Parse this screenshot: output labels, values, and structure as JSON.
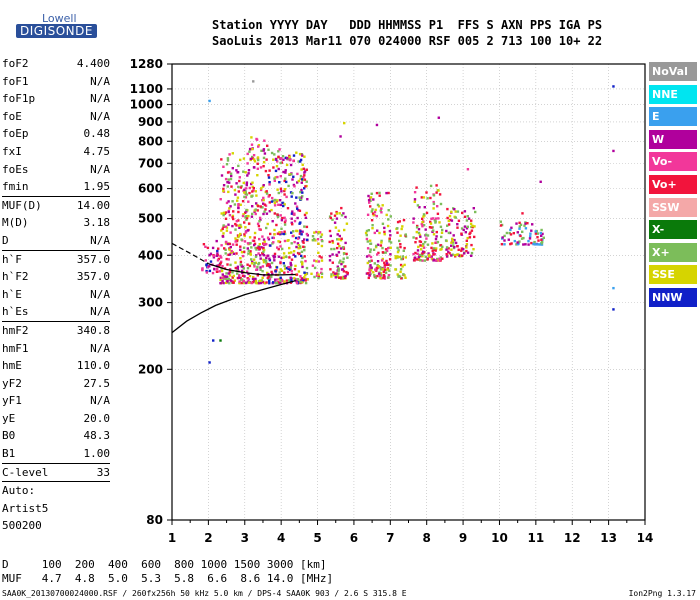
{
  "logo": {
    "line1": "Lowell",
    "line2": "DIGISONDE"
  },
  "header": {
    "labels": "Station YYYY DAY   DDD HHMMSS P1  FFS S AXN PPS IGA PS",
    "values": "SaoLuis 2013 Mar11 070 024000 RSF 005 2 713 100 10+ 22"
  },
  "params": [
    {
      "k": "foF2",
      "v": "4.400"
    },
    {
      "k": "foF1",
      "v": "N/A"
    },
    {
      "k": "foF1p",
      "v": "N/A"
    },
    {
      "k": "foE",
      "v": "N/A"
    },
    {
      "k": "foEp",
      "v": "0.48"
    },
    {
      "k": "fxI",
      "v": "4.75"
    },
    {
      "k": "foEs",
      "v": "N/A"
    },
    {
      "k": "fmin",
      "v": "1.95"
    },
    {
      "k": "MUF(D)",
      "v": "14.00",
      "sep": true
    },
    {
      "k": "M(D)",
      "v": "3.18"
    },
    {
      "k": "D",
      "v": "N/A"
    },
    {
      "k": "h`F",
      "v": "357.0",
      "sep": true
    },
    {
      "k": "h`F2",
      "v": "357.0"
    },
    {
      "k": "h`E",
      "v": "N/A"
    },
    {
      "k": "h`Es",
      "v": "N/A"
    },
    {
      "k": "hmF2",
      "v": "340.8",
      "sep": true
    },
    {
      "k": "hmF1",
      "v": "N/A"
    },
    {
      "k": "hmE",
      "v": "110.0"
    },
    {
      "k": "yF2",
      "v": "27.5"
    },
    {
      "k": "yF1",
      "v": "N/A"
    },
    {
      "k": "yE",
      "v": "20.0"
    },
    {
      "k": "B0",
      "v": "48.3"
    },
    {
      "k": "B1",
      "v": "1.00"
    },
    {
      "k": "C-level",
      "v": "33",
      "sep": true
    },
    {
      "k": "Auto:",
      "v": "",
      "sep": true
    },
    {
      "k": "Artist5",
      "v": ""
    },
    {
      "k": "500200",
      "v": ""
    }
  ],
  "legend": [
    {
      "label": "NoVal",
      "color": "#999999"
    },
    {
      "label": "NNE",
      "color": "#00e5f0"
    },
    {
      "label": "E",
      "color": "#3aa0ee"
    },
    {
      "label": "W",
      "color": "#b0009c"
    },
    {
      "label": "Vo-",
      "color": "#f2379a"
    },
    {
      "label": "Vo+",
      "color": "#f2143c"
    },
    {
      "label": "SSW",
      "color": "#f4a8a8"
    },
    {
      "label": "X-",
      "color": "#0a7a0a"
    },
    {
      "label": "X+",
      "color": "#7cbd5a"
    },
    {
      "label": "SSE",
      "color": "#d6d400"
    },
    {
      "label": "NNW",
      "color": "#1020c8"
    }
  ],
  "bottom": {
    "row1": "D     100  200  400  600  800 1000 1500 3000 [km]",
    "row2": "MUF   4.7  4.8  5.0  5.3  5.8  6.6  8.6 14.0 [MHz]"
  },
  "footer": {
    "left": "SAA0K_20130700024000.RSF / 260fx256h 50 kHz 5.0 km / DPS-4 SAA0K 903 / 2.6 S 315.8 E",
    "right": "Ion2Png 1.3.17"
  },
  "chart_data": {
    "type": "scatter",
    "title": "",
    "xlabel": "",
    "ylabel": "",
    "xlim": [
      1,
      14
    ],
    "ylim": [
      80,
      1280
    ],
    "yscale": "log",
    "x_ticks": [
      1,
      2,
      3,
      4,
      5,
      6,
      7,
      8,
      9,
      10,
      11,
      12,
      13,
      14
    ],
    "y_ticks": [
      80,
      200,
      300,
      400,
      500,
      600,
      700,
      800,
      900,
      1000,
      1100,
      1280
    ],
    "grid": true,
    "legend_position": "right",
    "clusters": [
      {
        "x": [
          1.8,
          2.3
        ],
        "y": [
          360,
          440
        ],
        "colors": [
          "Vo+",
          "W",
          "Vo-",
          "NNW"
        ]
      },
      {
        "x": [
          2.3,
          3.0
        ],
        "y": [
          340,
          760
        ],
        "colors": [
          "W",
          "Vo-",
          "Vo+",
          "X+",
          "SSE"
        ]
      },
      {
        "x": [
          3.0,
          3.6
        ],
        "y": [
          340,
          830
        ],
        "colors": [
          "W",
          "Vo-",
          "Vo+",
          "SSE",
          "X+"
        ]
      },
      {
        "x": [
          3.6,
          4.0
        ],
        "y": [
          340,
          780
        ],
        "colors": [
          "W",
          "Vo-",
          "Vo+",
          "SSE",
          "X+",
          "NNW"
        ]
      },
      {
        "x": [
          4.0,
          4.7
        ],
        "y": [
          340,
          760
        ],
        "colors": [
          "W",
          "Vo-",
          "Vo+",
          "SSE",
          "X+",
          "NNW"
        ]
      },
      {
        "x": [
          4.8,
          5.1
        ],
        "y": [
          350,
          470
        ],
        "colors": [
          "Vo-",
          "Vo+",
          "SSE",
          "X+"
        ]
      },
      {
        "x": [
          5.3,
          5.8
        ],
        "y": [
          350,
          540
        ],
        "colors": [
          "Vo+",
          "W",
          "SSE",
          "X+"
        ]
      },
      {
        "x": [
          6.3,
          7.0
        ],
        "y": [
          350,
          590
        ],
        "colors": [
          "Vo+",
          "Vo-",
          "W",
          "SSE",
          "X+"
        ]
      },
      {
        "x": [
          7.1,
          7.4
        ],
        "y": [
          350,
          500
        ],
        "colors": [
          "Vo+",
          "SSE",
          "X+"
        ]
      },
      {
        "x": [
          7.6,
          8.4
        ],
        "y": [
          390,
          620
        ],
        "colors": [
          "Vo+",
          "Vo-",
          "W",
          "SSE",
          "X+"
        ]
      },
      {
        "x": [
          8.5,
          9.3
        ],
        "y": [
          400,
          540
        ],
        "colors": [
          "Vo+",
          "W",
          "SSE",
          "X+"
        ]
      },
      {
        "x": [
          10.0,
          11.2
        ],
        "y": [
          430,
          500
        ],
        "colors": [
          "Vo+",
          "W",
          "X+",
          "E"
        ]
      }
    ],
    "traces": [
      {
        "name": "O-trace",
        "points": [
          [
            1.0,
            250
          ],
          [
            1.4,
            268
          ],
          [
            1.8,
            282
          ],
          [
            2.2,
            295
          ],
          [
            2.6,
            305
          ],
          [
            3.0,
            315
          ],
          [
            3.5,
            325
          ],
          [
            4.0,
            335
          ],
          [
            4.4,
            343
          ]
        ]
      },
      {
        "name": "X-trace",
        "points": [
          [
            1.0,
            430
          ],
          [
            1.5,
            405
          ],
          [
            2.0,
            380
          ],
          [
            2.5,
            367
          ],
          [
            3.0,
            360
          ],
          [
            3.5,
            355
          ],
          [
            4.0,
            355
          ],
          [
            4.4,
            356
          ]
        ],
        "dashed_until": 2.0
      }
    ]
  }
}
